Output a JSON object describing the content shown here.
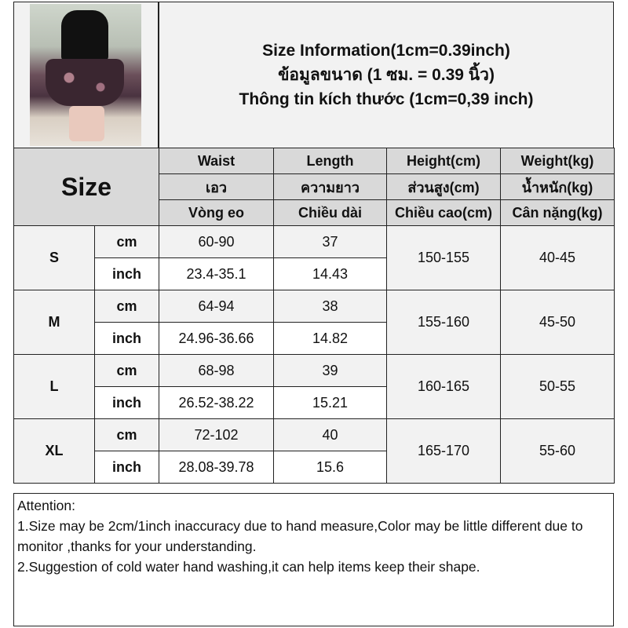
{
  "header": {
    "lines": [
      "Size Information(1cm=0.39inch)",
      "ข้อมูลขนาด (1 ซม. = 0.39 นิ้ว)",
      "Thông tin kích thước (1cm=0,39 inch)"
    ]
  },
  "table": {
    "size_label": "Size",
    "columns": [
      [
        "Waist",
        "เอว",
        "Vòng eo"
      ],
      [
        "Length",
        "ความยาว",
        "Chiều dài"
      ],
      [
        "Height(cm)",
        "ส่วนสูง(cm)",
        "Chiều cao(cm)"
      ],
      [
        "Weight(kg)",
        "น้ำหนัก(kg)",
        "Cân nặng(kg)"
      ]
    ],
    "rows": [
      {
        "size": "S",
        "cm_label": "cm",
        "inch_label": "inch",
        "waist_cm": "60-90",
        "length_cm": "37",
        "waist_inch": "23.4-35.1",
        "length_inch": "14.43",
        "height": "150-155",
        "weight": "40-45"
      },
      {
        "size": "M",
        "cm_label": "cm",
        "inch_label": "inch",
        "waist_cm": "64-94",
        "length_cm": "38",
        "waist_inch": "24.96-36.66",
        "length_inch": "14.82",
        "height": "155-160",
        "weight": "45-50"
      },
      {
        "size": "L",
        "cm_label": "cm",
        "inch_label": "inch",
        "waist_cm": "68-98",
        "length_cm": "39",
        "waist_inch": "26.52-38.22",
        "length_inch": "15.21",
        "height": "160-165",
        "weight": "50-55"
      },
      {
        "size": "XL",
        "cm_label": "cm",
        "inch_label": "inch",
        "waist_cm": "72-102",
        "length_cm": "40",
        "waist_inch": "28.08-39.78",
        "length_inch": "15.6",
        "height": "165-170",
        "weight": "55-60"
      }
    ]
  },
  "notes": {
    "title": "Attention:",
    "items": [
      "1.Size may be 2cm/1inch inaccuracy due to hand measure,Color may be little different due to monitor ,thanks for your understanding.",
      "2.Suggestion of cold water hand washing,it can help items keep their shape."
    ]
  }
}
